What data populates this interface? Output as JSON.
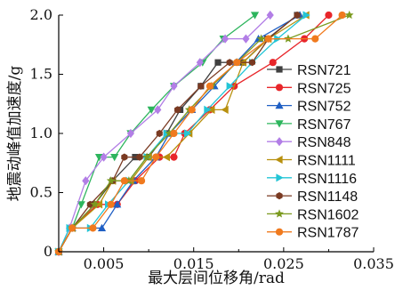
{
  "chart_data": {
    "type": "line",
    "xlabel": "最大层间位移角/rad",
    "ylabel": "地震动峰值加速度/g",
    "xlim": [
      0,
      0.035
    ],
    "ylim": [
      0,
      2.0
    ],
    "xticks": [
      0.005,
      0.015,
      0.025,
      0.035
    ],
    "xtick_labels": [
      "0.005",
      "0.015",
      "0.025",
      "0.035"
    ],
    "x_origin_label": "0",
    "yticks": [
      0.5,
      1.0,
      1.5,
      2.0
    ],
    "ytick_labels": [
      "0.5",
      "1.0",
      "1.5",
      "2.0"
    ],
    "grid": false,
    "legend_position": "right",
    "series": [
      {
        "name": "RSN721",
        "color": "#404040",
        "marker": "square",
        "x": [
          0,
          0.0015,
          0.004,
          0.006,
          0.0085,
          0.01,
          0.012,
          0.0135,
          0.0158,
          0.0177,
          0.0205,
          0.0232,
          0.0265
        ],
        "y": [
          0,
          0.2,
          0.4,
          0.6,
          0.8,
          0.8,
          1.0,
          1.2,
          1.4,
          1.6,
          1.6,
          1.8,
          2.0
        ]
      },
      {
        "name": "RSN725",
        "color": "#e8262a",
        "marker": "circle",
        "x": [
          0,
          0.0015,
          0.0043,
          0.0065,
          0.0085,
          0.0112,
          0.0128,
          0.014,
          0.0168,
          0.0195,
          0.0238,
          0.0273,
          0.03
        ],
        "y": [
          0,
          0.2,
          0.4,
          0.4,
          0.6,
          0.8,
          0.8,
          1.0,
          1.2,
          1.4,
          1.6,
          1.8,
          2.0
        ]
      },
      {
        "name": "RSN752",
        "color": "#1f5fc4",
        "marker": "triangle",
        "x": [
          0,
          0.0015,
          0.0048,
          0.0065,
          0.0083,
          0.0108,
          0.0123,
          0.0148,
          0.0173,
          0.0197,
          0.0222,
          0.0268
        ],
        "y": [
          0,
          0.2,
          0.2,
          0.4,
          0.6,
          0.8,
          1.0,
          1.2,
          1.4,
          1.6,
          1.8,
          2.0
        ]
      },
      {
        "name": "RSN767",
        "color": "#2db55d",
        "marker": "triangle-down",
        "x": [
          0,
          0.0015,
          0.0025,
          0.0045,
          0.0062,
          0.008,
          0.0103,
          0.0128,
          0.016,
          0.0183,
          0.0218
        ],
        "y": [
          0,
          0.2,
          0.4,
          0.8,
          0.8,
          1.0,
          1.2,
          1.4,
          1.6,
          1.8,
          2.0
        ]
      },
      {
        "name": "RSN848",
        "color": "#b27ee6",
        "marker": "diamond",
        "x": [
          0,
          0.0012,
          0.003,
          0.005,
          0.008,
          0.011,
          0.0128,
          0.0157,
          0.0185,
          0.0208,
          0.0235
        ],
        "y": [
          0,
          0.2,
          0.6,
          0.8,
          1.0,
          1.2,
          1.4,
          1.6,
          1.8,
          1.8,
          2.0
        ]
      },
      {
        "name": "RSN1111",
        "color": "#b8900e",
        "marker": "triangle-left",
        "x": [
          0,
          0.0015,
          0.0045,
          0.006,
          0.008,
          0.01,
          0.012,
          0.0145,
          0.017,
          0.0185,
          0.0205,
          0.0233,
          0.0275
        ],
        "y": [
          0,
          0.2,
          0.4,
          0.6,
          0.6,
          0.8,
          0.8,
          1.0,
          1.2,
          1.2,
          1.6,
          1.8,
          2.0
        ]
      },
      {
        "name": "RSN1116",
        "color": "#23c5d6",
        "marker": "triangle-right",
        "x": [
          0,
          0.0012,
          0.0035,
          0.0055,
          0.0078,
          0.0098,
          0.012,
          0.0143,
          0.0165,
          0.019,
          0.0215,
          0.0243,
          0.0275
        ],
        "y": [
          0,
          0.2,
          0.2,
          0.4,
          0.6,
          0.8,
          1.0,
          1.0,
          1.2,
          1.4,
          1.6,
          1.8,
          2.0
        ]
      },
      {
        "name": "RSN1148",
        "color": "#7a3a22",
        "marker": "hexagon",
        "x": [
          0,
          0.0015,
          0.0035,
          0.006,
          0.0073,
          0.009,
          0.0112,
          0.0132,
          0.0158,
          0.019,
          0.0215,
          0.0233,
          0.0265
        ],
        "y": [
          0,
          0.2,
          0.4,
          0.6,
          0.8,
          0.8,
          1.0,
          1.2,
          1.4,
          1.6,
          1.6,
          1.8,
          2.0
        ]
      },
      {
        "name": "RSN1602",
        "color": "#7b9a1f",
        "marker": "star",
        "x": [
          0,
          0.0015,
          0.004,
          0.0058,
          0.0078,
          0.0098,
          0.0123,
          0.0145,
          0.017,
          0.0198,
          0.0225,
          0.0255,
          0.0323
        ],
        "y": [
          0,
          0.2,
          0.4,
          0.6,
          0.6,
          0.8,
          1.0,
          1.2,
          1.4,
          1.6,
          1.8,
          1.8,
          2.0
        ]
      },
      {
        "name": "RSN1787",
        "color": "#f07a1e",
        "marker": "circle",
        "x": [
          0,
          0.0015,
          0.0038,
          0.0058,
          0.0073,
          0.0092,
          0.0108,
          0.0128,
          0.0148,
          0.0168,
          0.0198,
          0.0233,
          0.0285,
          0.0315
        ],
        "y": [
          0,
          0.2,
          0.2,
          0.4,
          0.6,
          0.6,
          0.8,
          1.0,
          1.2,
          1.4,
          1.6,
          1.8,
          1.8,
          2.0
        ]
      }
    ]
  }
}
